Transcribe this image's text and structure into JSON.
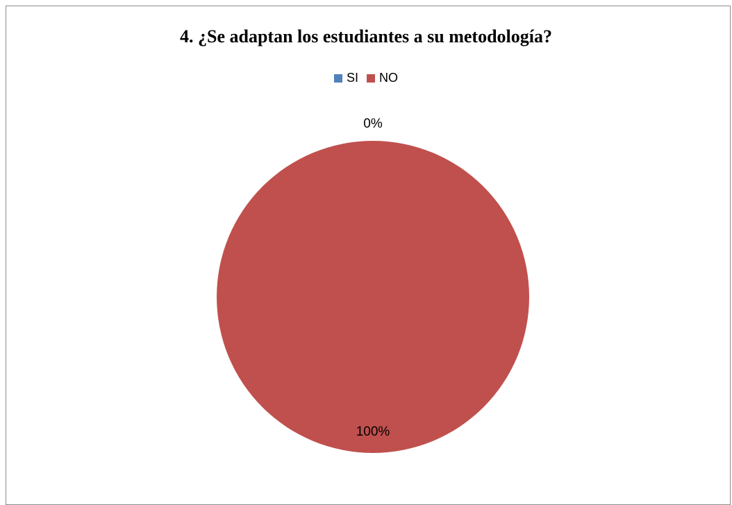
{
  "chart_data": {
    "type": "pie",
    "title": "4. ¿Se adaptan los estudiantes a su metodología?",
    "categories": [
      "SI",
      "NO"
    ],
    "values": [
      0,
      100
    ],
    "data_labels": [
      "0%",
      "100%"
    ],
    "colors": [
      "#4f81bd",
      "#c0504d"
    ],
    "legend_position": "top",
    "grid": false
  }
}
